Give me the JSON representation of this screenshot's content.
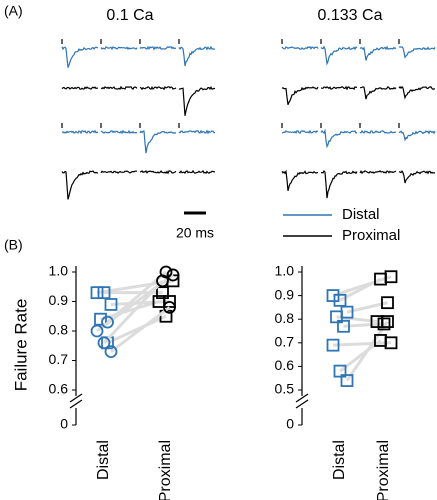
{
  "panel_a": {
    "label": "(A)",
    "conditions": [
      "0.1 Ca",
      "0.133 Ca"
    ],
    "scale_bar": "20 ms",
    "legend": [
      {
        "name": "Distal",
        "color": "#2e75b6"
      },
      {
        "name": "Proximal",
        "color": "#000000"
      }
    ]
  },
  "panel_b": {
    "label": "(B)"
  },
  "chart_data": [
    {
      "type": "paired",
      "ylabel": "Failure Rate",
      "categories": [
        "Distal",
        "Proximal"
      ],
      "category_colors": [
        "#2e75b6",
        "#000000"
      ],
      "ylim": [
        0.6,
        1
      ],
      "yticks": [
        0,
        0.6,
        0.7,
        0.8,
        0.9,
        {
          "value": 1,
          "label": "1.0"
        }
      ],
      "axis_break": true,
      "series": [
        {
          "marker": "square",
          "distal": [
            0.93,
            0.93,
            0.89,
            0.84,
            0.76
          ],
          "proximal": [
            0.97,
            0.93,
            0.9,
            0.9,
            0.85
          ]
        },
        {
          "marker": "circle",
          "distal": [
            0.83,
            0.8,
            0.76,
            0.73
          ],
          "proximal": [
            1,
            0.99,
            0.97,
            0.88
          ]
        }
      ]
    },
    {
      "type": "paired",
      "categories": [
        "Distal",
        "Proximal"
      ],
      "category_colors": [
        "#2e75b6",
        "#000000"
      ],
      "ylim": [
        0.5,
        1
      ],
      "yticks": [
        0,
        0.5,
        0.6,
        0.7,
        0.8,
        0.9,
        {
          "value": 1,
          "label": "1.0"
        }
      ],
      "axis_break": true,
      "series": [
        {
          "marker": "square",
          "distal": [
            0.9,
            0.88,
            0.83,
            0.81,
            0.77,
            0.69,
            0.58,
            0.54
          ],
          "proximal": [
            0.98,
            0.97,
            0.87,
            0.79,
            0.78,
            0.7,
            0.71,
            0.79
          ]
        }
      ]
    }
  ]
}
